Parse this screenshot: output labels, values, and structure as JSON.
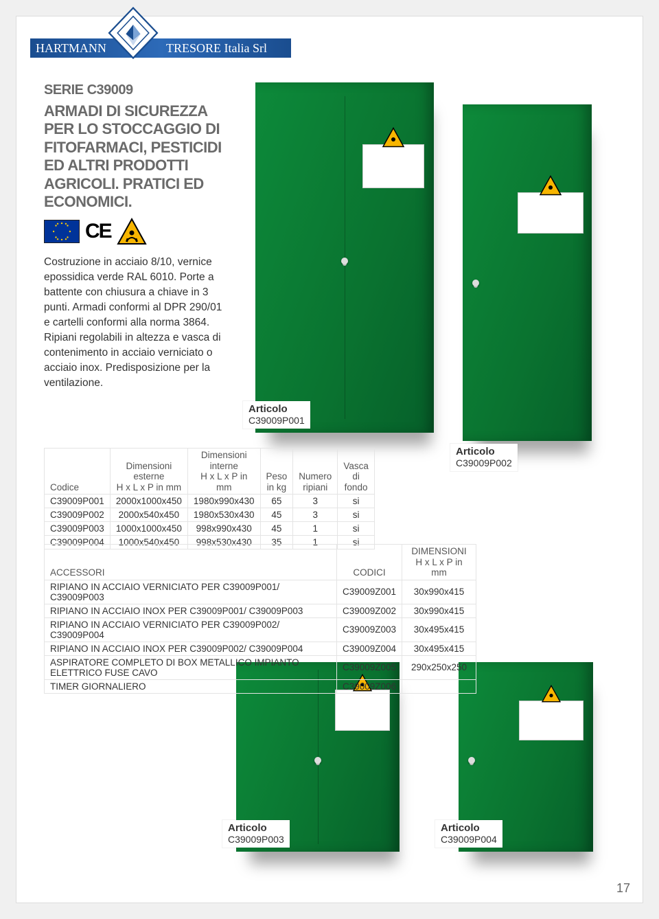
{
  "header": {
    "brand_left": "HARTMANN",
    "brand_right": "TRESORE Italia Srl"
  },
  "colors": {
    "banner_gradient_start": "#1a4d8f",
    "banner_gradient_mid": "#2d6ab8",
    "cabinet_green_light": "#0d8a3a",
    "cabinet_green_dark": "#06602a",
    "eu_flag_blue": "#003399",
    "eu_flag_gold": "#ffcc00",
    "hazard_yellow": "#f7b500",
    "text_grey": "#6a6a6a",
    "page_bg": "#f0f0f0"
  },
  "serie": "SERIE C39009",
  "headline": "ARMADI DI SICUREZZA PER LO STOCCAGGIO DI FITOFARMACI, PESTICIDI ED ALTRI PRODOTTI AGRICOLI. PRATICI ED ECONOMICI.",
  "ce_mark": "CE",
  "bodytext": "Costruzione in acciaio 8/10, vernice epossidica verde RAL 6010. Porte a battente con chiusura a chiave in 3 punti. Armadi conformi al DPR 290/01 e cartelli conformi alla norma 3864. Ripiani regolabili in altezza e vasca di contenimento in acciaio verniciato o acciaio inox. Predisposizione per la ventilazione.",
  "articolo_label": "Articolo",
  "articles": {
    "p001": "C39009P001",
    "p002": "C39009P002",
    "p003": "C39009P003",
    "p004": "C39009P004"
  },
  "products_table": {
    "headers": [
      "Codice",
      "Dimensioni esterne\nH x L x P in mm",
      "Dimensioni interne\nH x L x P in mm",
      "Peso\nin kg",
      "Numero\nripiani",
      "Vasca di\nfondo"
    ],
    "rows": [
      [
        "C39009P001",
        "2000x1000x450",
        "1980x990x430",
        "65",
        "3",
        "si"
      ],
      [
        "C39009P002",
        "2000x540x450",
        "1980x530x430",
        "45",
        "3",
        "si"
      ],
      [
        "C39009P003",
        "1000x1000x450",
        "998x990x430",
        "45",
        "1",
        "si"
      ],
      [
        "C39009P004",
        "1000x540x450",
        "998x530x430",
        "35",
        "1",
        "si"
      ]
    ]
  },
  "accessories_table": {
    "headers": [
      "ACCESSORI",
      "CODICI",
      "DIMENSIONI\nH x L x P in mm"
    ],
    "rows": [
      [
        "RIPIANO IN ACCIAIO VERNICIATO PER C39009P001/ C39009P003",
        "C39009Z001",
        "30x990x415"
      ],
      [
        "RIPIANO IN ACCIAIO INOX PER C39009P001/ C39009P003",
        "C39009Z002",
        "30x990x415"
      ],
      [
        "RIPIANO IN ACCIAIO VERNICIATO PER C39009P002/ C39009P004",
        "C39009Z003",
        "30x495x415"
      ],
      [
        "RIPIANO IN ACCIAIO INOX PER C39009P002/ C39009P004",
        "C39009Z004",
        "30x495x415"
      ],
      [
        "ASPIRATORE COMPLETO DI BOX METALLICO IMPIANTO ELETTRICO FUSE CAVO",
        "C39009Z005",
        "290x250x250"
      ],
      [
        "TIMER GIORNALIERO",
        "C39009Z006",
        ""
      ]
    ]
  },
  "page_number": "17"
}
